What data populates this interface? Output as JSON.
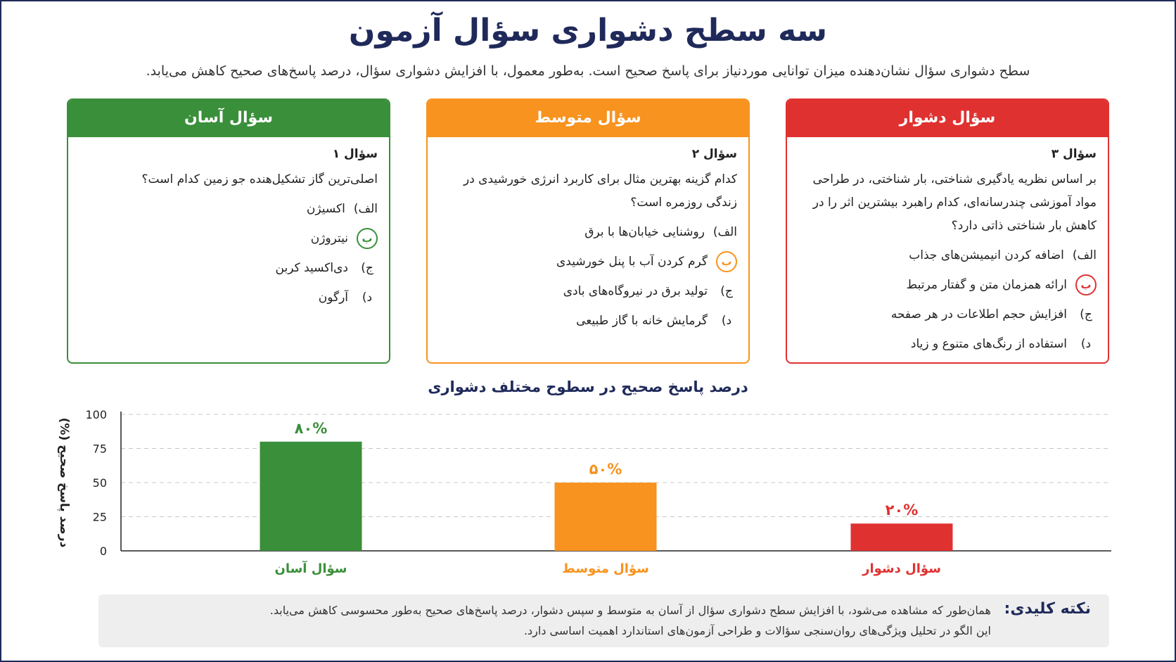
{
  "title": "سه سطح دشواری سؤال آزمون",
  "subtitle": "سطح دشواری سؤال نشان‌دهنده میزان توانایی موردنیاز برای پاسخ صحیح است. به‌طور معمول، با افزایش دشواری سؤال، درصد پاسخ‌های صحیح کاهش می‌یابد.",
  "colors": {
    "easy": "#3a8f3a",
    "medium": "#f7931e",
    "hard": "#e03131",
    "navy": "#1f2a5a"
  },
  "cards": {
    "hard": {
      "header": "سؤال دشوار",
      "q_num": "سؤال ۳",
      "question": "بر اساس نظریه یادگیری شناختی، بار شناختی، در طراحی مواد آموزشی چندرسانه‌ای، کدام راهبرد بیشترین اثر را در کاهش بار شناختی ذاتی دارد؟",
      "options": [
        {
          "letter": "الف)",
          "text": "اضافه کردن انیمیشن‌های جذاب"
        },
        {
          "letter": "ب",
          "text": "ارائه همزمان متن و گفتار مرتبط",
          "correct": true
        },
        {
          "letter": "ج)",
          "text": "افزایش حجم اطلاعات در هر صفحه"
        },
        {
          "letter": "د)",
          "text": "استفاده از رنگ‌های متنوع و زیاد"
        }
      ]
    },
    "medium": {
      "header": "سؤال متوسط",
      "q_num": "سؤال ۲",
      "question": "کدام گزینه بهترین مثال برای کاربرد انرژی خورشیدی در زندگی روزمره است؟",
      "options": [
        {
          "letter": "الف)",
          "text": "روشنایی خیابان‌ها با برق"
        },
        {
          "letter": "ب",
          "text": "گرم کردن آب با پنل خورشیدی",
          "correct": true
        },
        {
          "letter": "ج)",
          "text": "تولید برق در نیروگاه‌های بادی"
        },
        {
          "letter": "د)",
          "text": "گرمایش خانه با گاز طبیعی"
        }
      ]
    },
    "easy": {
      "header": "سؤال آسان",
      "q_num": "سؤال ۱",
      "question": "اصلی‌ترین گاز تشکیل‌هنده جو زمین کدام است؟",
      "options": [
        {
          "letter": "الف)",
          "text": "اکسیژن"
        },
        {
          "letter": "ب",
          "text": "نیتروژن",
          "correct": true
        },
        {
          "letter": "ج)",
          "text": "دی‌اکسید کربن"
        },
        {
          "letter": "د)",
          "text": "آرگون"
        }
      ]
    }
  },
  "chart_title": "درصد پاسخ صحیح در سطوح مختلف دشواری",
  "chart_data": {
    "type": "bar",
    "categories": [
      "سؤال آسان",
      "سؤال متوسط",
      "سؤال دشوار"
    ],
    "values": [
      80,
      50,
      20
    ],
    "value_labels": [
      "۸۰%",
      "۵۰%",
      "۲۰%"
    ],
    "colors": [
      "#3a8f3a",
      "#f7931e",
      "#e03131"
    ],
    "ylabel": "درصد پاسخ صحیح (%)",
    "yticks": [
      0,
      25,
      50,
      75,
      100
    ],
    "ylim": [
      0,
      100
    ],
    "grid": true
  },
  "keynote": {
    "label": "نکته کلیدی:",
    "line1": "همان‌طور که مشاهده می‌شود، با افزایش سطح دشواری سؤال از آسان به متوسط و سپس دشوار، درصد پاسخ‌های صحیح به‌طور محسوسی کاهش می‌یابد.",
    "line2": "این الگو در تحلیل ویژگی‌های روان‌سنجی سؤالات و طراحی آزمون‌های استاندارد اهمیت اساسی دارد."
  }
}
